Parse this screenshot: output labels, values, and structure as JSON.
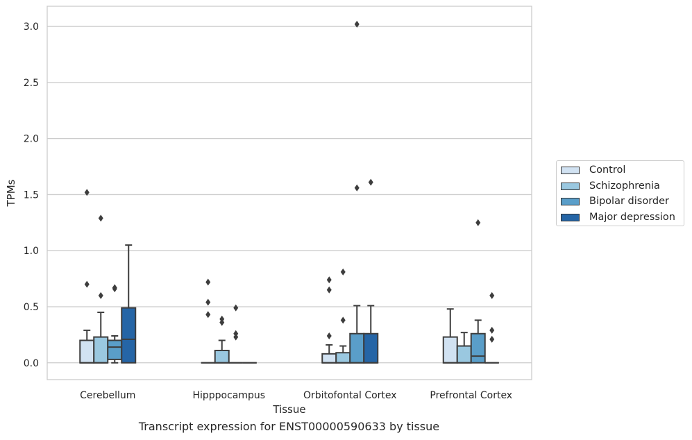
{
  "chart_data": {
    "type": "box",
    "title": "Transcript expression for ENST00000590633 by tissue",
    "xlabel": "Tissue",
    "ylabel": "TPMs",
    "ylim": [
      -0.15,
      3.18
    ],
    "yticks": [
      "0.0",
      "0.5",
      "1.0",
      "1.5",
      "2.0",
      "2.5",
      "3.0"
    ],
    "grid": "horizontal",
    "legend_position": "right, outside plot",
    "categories": [
      "Cerebellum",
      "Hipppocampus",
      "Orbitofontal Cortex",
      "Prefrontal Cortex"
    ],
    "series": [
      {
        "name": "Control",
        "color": "#d1e2f2",
        "boxes": [
          {
            "q1": 0.0,
            "median": 0.0,
            "q3": 0.2,
            "whislo": 0.0,
            "whishi": 0.29,
            "fliers": [
              0.7,
              1.52
            ]
          },
          {
            "q1": 0.0,
            "median": 0.0,
            "q3": 0.0,
            "whislo": 0.0,
            "whishi": 0.0,
            "fliers": [
              0.43,
              0.54,
              0.72
            ]
          },
          {
            "q1": 0.0,
            "median": 0.0,
            "q3": 0.08,
            "whislo": 0.0,
            "whishi": 0.16,
            "fliers": [
              0.24,
              0.65,
              0.74
            ]
          },
          {
            "q1": 0.0,
            "median": 0.0,
            "q3": 0.23,
            "whislo": 0.0,
            "whishi": 0.48,
            "fliers": []
          }
        ]
      },
      {
        "name": "Schizophrenia",
        "color": "#9ac8e0",
        "boxes": [
          {
            "q1": 0.0,
            "median": 0.0,
            "q3": 0.23,
            "whislo": 0.0,
            "whishi": 0.45,
            "fliers": [
              0.6,
              1.29
            ]
          },
          {
            "q1": 0.0,
            "median": 0.0,
            "q3": 0.11,
            "whislo": 0.0,
            "whishi": 0.2,
            "fliers": [
              0.36,
              0.39
            ]
          },
          {
            "q1": 0.0,
            "median": 0.0,
            "q3": 0.09,
            "whislo": 0.0,
            "whishi": 0.15,
            "fliers": [
              0.38,
              0.81
            ]
          },
          {
            "q1": 0.0,
            "median": 0.0,
            "q3": 0.15,
            "whislo": 0.0,
            "whishi": 0.27,
            "fliers": []
          }
        ]
      },
      {
        "name": "Bipolar disorder",
        "color": "#5a9ec9",
        "boxes": [
          {
            "q1": 0.03,
            "median": 0.14,
            "q3": 0.2,
            "whislo": 0.0,
            "whishi": 0.24,
            "fliers": [
              0.66,
              0.67
            ]
          },
          {
            "q1": 0.0,
            "median": 0.0,
            "q3": 0.0,
            "whislo": 0.0,
            "whishi": 0.0,
            "fliers": [
              0.23,
              0.26,
              0.49
            ]
          },
          {
            "q1": 0.0,
            "median": 0.0,
            "q3": 0.26,
            "whislo": 0.0,
            "whishi": 0.51,
            "fliers": [
              1.56,
              3.02
            ]
          },
          {
            "q1": 0.0,
            "median": 0.06,
            "q3": 0.26,
            "whislo": 0.0,
            "whishi": 0.38,
            "fliers": [
              1.25
            ]
          }
        ]
      },
      {
        "name": "Major depression",
        "color": "#2565a6",
        "boxes": [
          {
            "q1": 0.0,
            "median": 0.21,
            "q3": 0.49,
            "whislo": 0.0,
            "whishi": 1.05,
            "fliers": []
          },
          {
            "q1": 0.0,
            "median": 0.0,
            "q3": 0.0,
            "whislo": 0.0,
            "whishi": 0.0,
            "fliers": []
          },
          {
            "q1": 0.0,
            "median": 0.0,
            "q3": 0.26,
            "whislo": 0.0,
            "whishi": 0.51,
            "fliers": [
              1.61
            ]
          },
          {
            "q1": 0.0,
            "median": 0.0,
            "q3": 0.0,
            "whislo": 0.0,
            "whishi": 0.0,
            "fliers": [
              0.21,
              0.29,
              0.6
            ]
          }
        ]
      }
    ]
  }
}
